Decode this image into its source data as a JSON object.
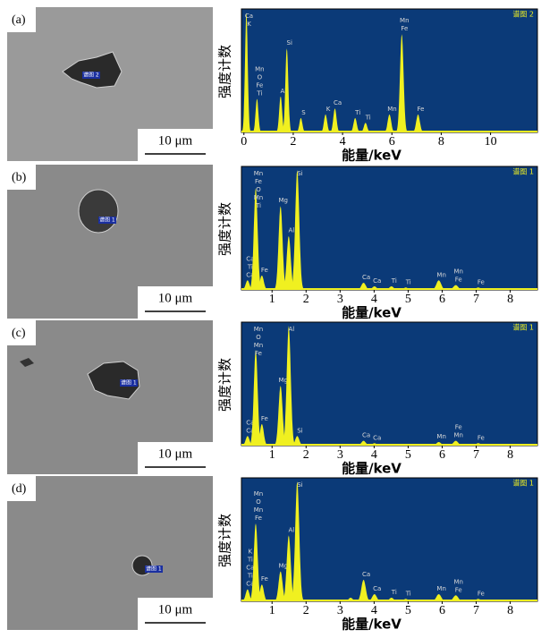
{
  "panels": [
    {
      "label": "(a)",
      "scale_bar": "10 μm",
      "spot": "谱图 2"
    },
    {
      "label": "(b)",
      "scale_bar": "10 μm",
      "spot": "谱图 1"
    },
    {
      "label": "(c)",
      "scale_bar": "10 μm",
      "spot": "谱图 1"
    },
    {
      "label": "(d)",
      "scale_bar": "10 μm",
      "spot": "谱图 1"
    }
  ],
  "chart_data": [
    {
      "type": "area",
      "tag": "谱图 2",
      "x_label": "能量/keV",
      "y_label": "强度计数",
      "color": "#f0f020",
      "background": "#0b3a78",
      "xlim": [
        -0.1,
        11.9
      ],
      "xticks": [
        0,
        2,
        4,
        6,
        8,
        10
      ],
      "ylim": [
        0,
        100
      ],
      "x": [
        0.1,
        0.53,
        1.49,
        1.74,
        2.31,
        3.31,
        3.69,
        4.51,
        4.93,
        5.9,
        6.4,
        7.06
      ],
      "values": [
        100,
        28,
        30,
        70,
        12,
        15,
        20,
        12,
        8,
        15,
        82,
        15
      ],
      "peak_labels": [
        [
          "Ca",
          "K"
        ],
        [
          "Mn",
          "O",
          "Fe",
          "Ti"
        ],
        [
          "Al"
        ],
        [
          "Si"
        ],
        [
          "S"
        ],
        [
          "K"
        ],
        [
          "Ca"
        ],
        [
          "Ti"
        ],
        [
          "Ti"
        ],
        [
          "Mn"
        ],
        [
          "Mn",
          "Fe"
        ],
        [
          "Fe"
        ]
      ]
    },
    {
      "type": "area",
      "tag": "谱图 1",
      "x_label": "能量/keV",
      "y_label": "强度计数",
      "color": "#f0f020",
      "background": "#0b3a78",
      "xlim": [
        0.1,
        8.8
      ],
      "xticks": [
        1,
        2,
        3,
        4,
        5,
        6,
        7,
        8
      ],
      "ylim": [
        0,
        100
      ],
      "x": [
        0.28,
        0.52,
        0.7,
        1.25,
        1.49,
        1.74,
        3.69,
        4.01,
        4.51,
        4.93,
        5.9,
        6.4,
        7.06
      ],
      "values": [
        8,
        85,
        12,
        70,
        45,
        100,
        6,
        3,
        3,
        2,
        8,
        4,
        2
      ],
      "peak_labels": [
        [
          "Ca",
          "Ti",
          "Ca"
        ],
        [
          "Mn",
          "Fe",
          "O",
          "Mn",
          "Ti"
        ],
        [
          "Fe"
        ],
        [
          "Mg"
        ],
        [
          "Al"
        ],
        [
          "Si"
        ],
        [
          "Ca"
        ],
        [
          "Ca"
        ],
        [
          "Ti"
        ],
        [
          "Ti"
        ],
        [
          "Mn"
        ],
        [
          "Mn",
          "Fe"
        ],
        [
          "Fe"
        ]
      ]
    },
    {
      "type": "area",
      "tag": "谱图 1",
      "x_label": "能量/keV",
      "y_label": "强度计数",
      "color": "#f0f020",
      "background": "#0b3a78",
      "xlim": [
        0.1,
        8.8
      ],
      "xticks": [
        1,
        2,
        3,
        4,
        5,
        6,
        7,
        8
      ],
      "ylim": [
        0,
        100
      ],
      "x": [
        0.28,
        0.52,
        0.7,
        1.25,
        1.49,
        1.74,
        3.69,
        4.01,
        5.9,
        6.4,
        7.06
      ],
      "values": [
        8,
        80,
        18,
        50,
        100,
        8,
        4,
        2,
        3,
        4,
        2
      ],
      "peak_labels": [
        [
          "Ca",
          "Ca"
        ],
        [
          "Mn",
          "O",
          "Mn",
          "Fe"
        ],
        [
          "Fe"
        ],
        [
          "Mg"
        ],
        [
          "Al"
        ],
        [
          "Si"
        ],
        [
          "Ca"
        ],
        [
          "Ca"
        ],
        [
          "Mn"
        ],
        [
          "Fe",
          "Mn"
        ],
        [
          "Fe"
        ]
      ]
    },
    {
      "type": "area",
      "tag": "谱图 1",
      "x_label": "能量/keV",
      "y_label": "强度计数",
      "color": "#f0f020",
      "background": "#0b3a78",
      "xlim": [
        0.1,
        8.8
      ],
      "xticks": [
        1,
        2,
        3,
        4,
        5,
        6,
        7,
        8
      ],
      "ylim": [
        0,
        100
      ],
      "x": [
        0.28,
        0.52,
        0.7,
        1.25,
        1.49,
        1.74,
        3.31,
        3.69,
        4.01,
        4.51,
        4.93,
        5.9,
        6.4,
        7.06
      ],
      "values": [
        10,
        65,
        14,
        25,
        55,
        100,
        3,
        18,
        6,
        3,
        2,
        6,
        5,
        2
      ],
      "peak_labels": [
        [
          "K",
          "Ti",
          "Ca",
          "Ti",
          "Ca"
        ],
        [
          "Mn",
          "O",
          "Mn",
          "Fe"
        ],
        [
          "Fe"
        ],
        [
          "Mg"
        ],
        [
          "Al"
        ],
        [
          "Si"
        ],
        null,
        [
          "Ca"
        ],
        [
          "Ca"
        ],
        [
          "Ti"
        ],
        [
          "Ti"
        ],
        [
          "Mn"
        ],
        [
          "Mn",
          "Fe"
        ],
        [
          "Fe"
        ]
      ]
    }
  ]
}
